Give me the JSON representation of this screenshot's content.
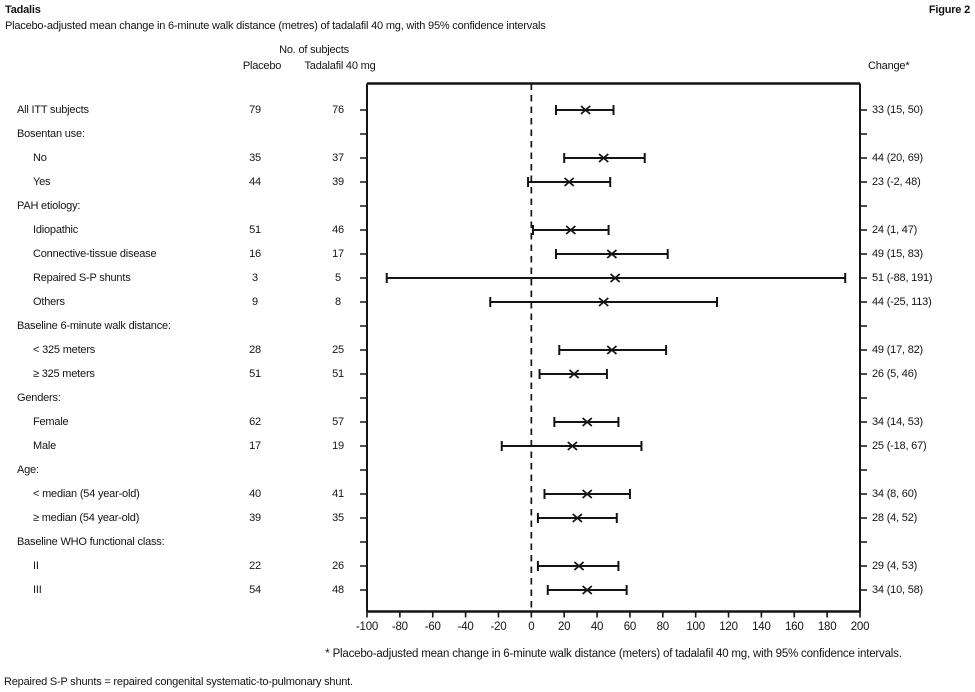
{
  "page": {
    "app_title": "Tadalis",
    "figure_label": "Figure 2",
    "subtitle": "Placebo-adjusted mean change in 6-minute walk distance (metres) of tadalafil 40 mg, with 95% confidence intervals",
    "footnote": "* Placebo-adjusted mean change in 6-minute walk distance (meters) of tadalafil 40 mg, with 95% confidence intervals.",
    "abbreviation_note": "Repaired S-P shunts = repaired congenital systematic-to-pulmonary shunt."
  },
  "table": {
    "group_header": "No. of subjects",
    "col_placebo": "Placebo",
    "col_tadalafil": "Tadalafil 40 mg",
    "col_change": "Change*"
  },
  "colors": {
    "ink": "#141414",
    "background": "#ffffff"
  },
  "chart_data": {
    "type": "scatter",
    "subtype": "forest-plot",
    "title": "Placebo-adjusted mean change in 6-minute walk distance (metres) of tadalafil 40 mg, with 95% confidence intervals",
    "xlabel": "",
    "ylabel": "",
    "xlim": [
      -100,
      200
    ],
    "x_ticks": [
      -100,
      -80,
      -60,
      -40,
      -20,
      0,
      20,
      40,
      60,
      80,
      100,
      120,
      140,
      160,
      180,
      200
    ],
    "zero_line": 0,
    "grid": false,
    "marker": "x",
    "error_bars": "95% confidence interval",
    "rows": [
      {
        "label": "All ITT subjects",
        "indent": 0,
        "placebo_n": "79",
        "tadalafil_n": "76",
        "change": 33,
        "ci_low": 15,
        "ci_high": 50,
        "change_text": "33 (15, 50)"
      },
      {
        "label": "Bosentan use:",
        "indent": 0,
        "placebo_n": "",
        "tadalafil_n": "",
        "change": null,
        "ci_low": null,
        "ci_high": null,
        "change_text": ""
      },
      {
        "label": "No",
        "indent": 1,
        "placebo_n": "35",
        "tadalafil_n": "37",
        "change": 44,
        "ci_low": 20,
        "ci_high": 69,
        "change_text": "44 (20, 69)"
      },
      {
        "label": "Yes",
        "indent": 1,
        "placebo_n": "44",
        "tadalafil_n": "39",
        "change": 23,
        "ci_low": -2,
        "ci_high": 48,
        "change_text": "23 (-2, 48)"
      },
      {
        "label": "PAH etiology:",
        "indent": 0,
        "placebo_n": "",
        "tadalafil_n": "",
        "change": null,
        "ci_low": null,
        "ci_high": null,
        "change_text": ""
      },
      {
        "label": "Idiopathic",
        "indent": 1,
        "placebo_n": "51",
        "tadalafil_n": "46",
        "change": 24,
        "ci_low": 1,
        "ci_high": 47,
        "change_text": "24 (1, 47)"
      },
      {
        "label": "Connective-tissue disease",
        "indent": 1,
        "placebo_n": "16",
        "tadalafil_n": "17",
        "change": 49,
        "ci_low": 15,
        "ci_high": 83,
        "change_text": "49 (15, 83)"
      },
      {
        "label": "Repaired S-P shunts",
        "indent": 1,
        "placebo_n": "3",
        "tadalafil_n": "5",
        "change": 51,
        "ci_low": -88,
        "ci_high": 191,
        "change_text": "51 (-88, 191)"
      },
      {
        "label": "Others",
        "indent": 1,
        "placebo_n": "9",
        "tadalafil_n": "8",
        "change": 44,
        "ci_low": -25,
        "ci_high": 113,
        "change_text": "44 (-25, 113)"
      },
      {
        "label": "Baseline 6-minute walk distance:",
        "indent": 0,
        "placebo_n": "",
        "tadalafil_n": "",
        "change": null,
        "ci_low": null,
        "ci_high": null,
        "change_text": ""
      },
      {
        "label": "< 325 meters",
        "indent": 1,
        "placebo_n": "28",
        "tadalafil_n": "25",
        "change": 49,
        "ci_low": 17,
        "ci_high": 82,
        "change_text": "49 (17, 82)"
      },
      {
        "label": "≥ 325 meters",
        "indent": 1,
        "placebo_n": "51",
        "tadalafil_n": "51",
        "change": 26,
        "ci_low": 5,
        "ci_high": 46,
        "change_text": "26 (5, 46)"
      },
      {
        "label": "Genders:",
        "indent": 0,
        "placebo_n": "",
        "tadalafil_n": "",
        "change": null,
        "ci_low": null,
        "ci_high": null,
        "change_text": ""
      },
      {
        "label": "Female",
        "indent": 1,
        "placebo_n": "62",
        "tadalafil_n": "57",
        "change": 34,
        "ci_low": 14,
        "ci_high": 53,
        "change_text": "34 (14, 53)"
      },
      {
        "label": "Male",
        "indent": 1,
        "placebo_n": "17",
        "tadalafil_n": "19",
        "change": 25,
        "ci_low": -18,
        "ci_high": 67,
        "change_text": "25 (-18, 67)"
      },
      {
        "label": "Age:",
        "indent": 0,
        "placebo_n": "",
        "tadalafil_n": "",
        "change": null,
        "ci_low": null,
        "ci_high": null,
        "change_text": ""
      },
      {
        "label": "< median (54 year-old)",
        "indent": 1,
        "placebo_n": "40",
        "tadalafil_n": "41",
        "change": 34,
        "ci_low": 8,
        "ci_high": 60,
        "change_text": "34 (8, 60)"
      },
      {
        "label": "≥ median (54 year-old)",
        "indent": 1,
        "placebo_n": "39",
        "tadalafil_n": "35",
        "change": 28,
        "ci_low": 4,
        "ci_high": 52,
        "change_text": "28 (4, 52)"
      },
      {
        "label": "Baseline WHO functional class:",
        "indent": 0,
        "placebo_n": "",
        "tadalafil_n": "",
        "change": null,
        "ci_low": null,
        "ci_high": null,
        "change_text": ""
      },
      {
        "label": "II",
        "indent": 1,
        "placebo_n": "22",
        "tadalafil_n": "26",
        "change": 29,
        "ci_low": 4,
        "ci_high": 53,
        "change_text": "29 (4, 53)"
      },
      {
        "label": "III",
        "indent": 1,
        "placebo_n": "54",
        "tadalafil_n": "48",
        "change": 34,
        "ci_low": 10,
        "ci_high": 58,
        "change_text": "34 (10, 58)"
      }
    ]
  }
}
